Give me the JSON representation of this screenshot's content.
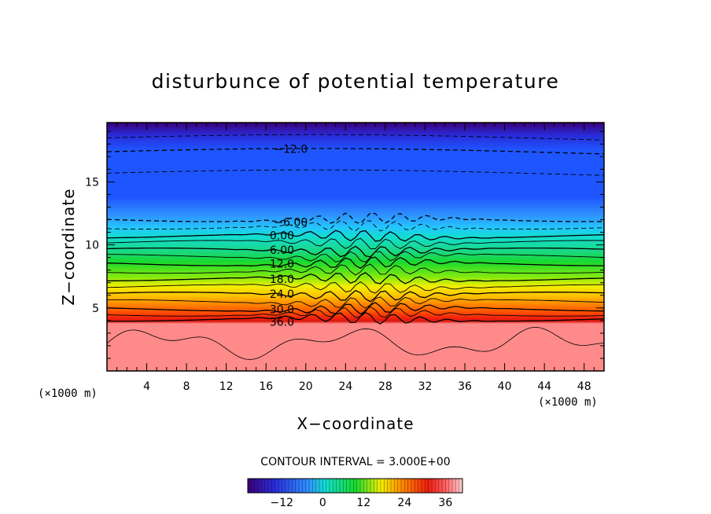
{
  "chart_data": {
    "type": "contour",
    "title": "disturbunce of potential temperature",
    "xlabel": "X−coordinate",
    "ylabel": "Z−coordinate",
    "x_unit": "(×1000 m)",
    "y_unit": "(×1000 m)",
    "xlim": [
      0,
      50
    ],
    "ylim": [
      0,
      19.7
    ],
    "x_ticks": [
      4,
      8,
      12,
      16,
      20,
      24,
      28,
      32,
      36,
      40,
      44,
      48
    ],
    "y_ticks": [
      5,
      10,
      15
    ],
    "contour_interval_text": "CONTOUR INTERVAL = 3.000E+00",
    "contour_interval": 3.0,
    "contour_labels": [
      {
        "text": "−12.0",
        "value": -12,
        "x": 18.5,
        "z": 17.6
      },
      {
        "text": "−6.00",
        "value": -6,
        "x": 18.5,
        "z": 11.8
      },
      {
        "text": "0.00",
        "value": 0,
        "x": 17.6,
        "z": 10.75
      },
      {
        "text": "6.00",
        "value": 6,
        "x": 17.6,
        "z": 9.6
      },
      {
        "text": "12.0",
        "value": 12,
        "x": 17.6,
        "z": 8.5
      },
      {
        "text": "18.0",
        "value": 18,
        "x": 17.6,
        "z": 7.3
      },
      {
        "text": "24.0",
        "value": 24,
        "x": 17.6,
        "z": 6.1
      },
      {
        "text": "30.0",
        "value": 30,
        "x": 17.6,
        "z": 4.9
      },
      {
        "text": "36.0",
        "value": 36,
        "x": 17.6,
        "z": 3.9
      }
    ],
    "level_heights_km": [
      {
        "value": -15,
        "z": 18.6
      },
      {
        "value": -12,
        "z": 17.5
      },
      {
        "value": -9,
        "z": 15.8
      },
      {
        "value": -6,
        "z": 12.0
      },
      {
        "value": -3,
        "z": 11.4
      },
      {
        "value": 0,
        "z": 10.7
      },
      {
        "value": 3,
        "z": 10.2
      },
      {
        "value": 6,
        "z": 9.6
      },
      {
        "value": 9,
        "z": 9.1
      },
      {
        "value": 12,
        "z": 8.5
      },
      {
        "value": 15,
        "z": 7.9
      },
      {
        "value": 18,
        "z": 7.3
      },
      {
        "value": 21,
        "z": 6.7
      },
      {
        "value": 24,
        "z": 6.1
      },
      {
        "value": 27,
        "z": 5.5
      },
      {
        "value": 30,
        "z": 4.9
      },
      {
        "value": 33,
        "z": 4.5
      },
      {
        "value": 36,
        "z": 4.1
      }
    ],
    "colorbar": {
      "ticks": [
        {
          "value": -12,
          "label": "−12"
        },
        {
          "value": 0,
          "label": "0"
        },
        {
          "value": 12,
          "label": "12"
        },
        {
          "value": 24,
          "label": "24"
        },
        {
          "value": 36,
          "label": "36"
        }
      ],
      "range": [
        -22,
        41
      ]
    },
    "colors": {
      "deep_purple": "#3a0078",
      "blue": "#1f55ff",
      "light_blue": "#2f8fff",
      "cyan": "#12ddd0",
      "green": "#17d930",
      "yellow": "#f2ee00",
      "orange": "#ff8800",
      "red": "#ee1d10",
      "salmon": "#ff8a8a"
    }
  }
}
